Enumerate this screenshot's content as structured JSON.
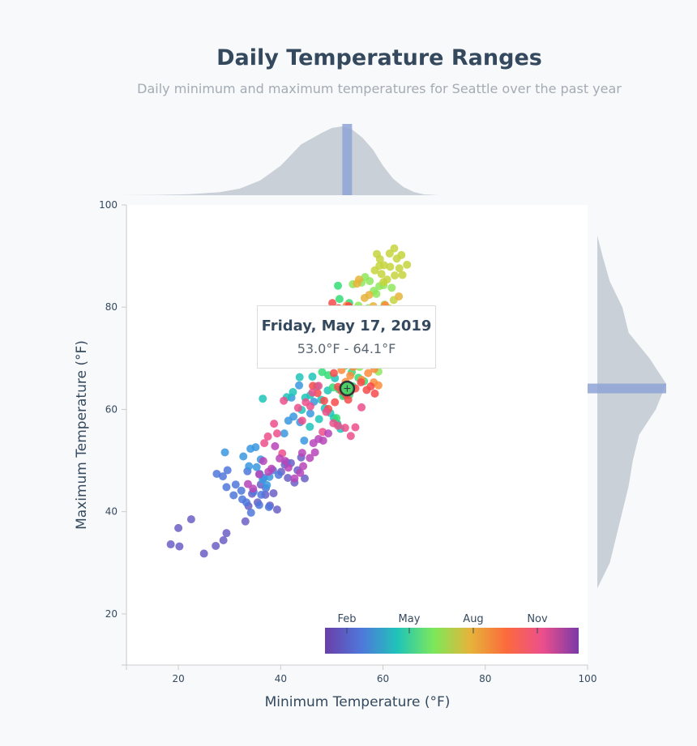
{
  "header": {
    "title": "Daily Temperature Ranges",
    "subtitle": "Daily minimum and maximum temperatures for Seattle over the past year"
  },
  "tooltip": {
    "date": "Friday, May 17, 2019",
    "range": "53.0°F - 64.1°F"
  },
  "colors": {
    "marginal_fill": "#c9d0d7",
    "highlight_band": "#8fa3d6",
    "axis": "#cccccc",
    "text": "#34495e"
  },
  "chart_data": {
    "type": "scatter",
    "title": "Daily Temperature Ranges",
    "subtitle": "Daily minimum and maximum temperatures for Seattle over the past year",
    "xlabel": "Minimum Temperature (°F)",
    "ylabel": "Maximum Temperature (°F)",
    "xlim": [
      10,
      100
    ],
    "ylim": [
      10,
      100
    ],
    "x_ticks": [
      20,
      40,
      60,
      80,
      100
    ],
    "y_ticks": [
      20,
      40,
      60,
      80,
      100
    ],
    "grid": false,
    "color_legend": {
      "placement": "bottom-right",
      "ticks": [
        "Feb",
        "May",
        "Aug",
        "Nov"
      ]
    },
    "highlight": {
      "min": 53.0,
      "max": 64.1
    },
    "marginal_top": [
      [
        8,
        0
      ],
      [
        16,
        0.2
      ],
      [
        22,
        0.6
      ],
      [
        28,
        1.8
      ],
      [
        32,
        4
      ],
      [
        36,
        9
      ],
      [
        40,
        18
      ],
      [
        44,
        31
      ],
      [
        48,
        38
      ],
      [
        50,
        41
      ],
      [
        52,
        42
      ],
      [
        54,
        40
      ],
      [
        56,
        35
      ],
      [
        58,
        28
      ],
      [
        60,
        18
      ],
      [
        62,
        10
      ],
      [
        64,
        5
      ],
      [
        66,
        2
      ],
      [
        68,
        0.5
      ],
      [
        71,
        0
      ]
    ],
    "marginal_right": [
      [
        25,
        0
      ],
      [
        30,
        6
      ],
      [
        35,
        9
      ],
      [
        40,
        12
      ],
      [
        45,
        15
      ],
      [
        50,
        17
      ],
      [
        55,
        20
      ],
      [
        60,
        28
      ],
      [
        65,
        33
      ],
      [
        70,
        25
      ],
      [
        75,
        15
      ],
      [
        80,
        12
      ],
      [
        85,
        6
      ],
      [
        90,
        2.5
      ],
      [
        94,
        0
      ]
    ],
    "series": [
      {
        "name": "Jan",
        "color": "#6c5fc7",
        "points": [
          [
            18.5,
            33.6
          ],
          [
            20.2,
            33.2
          ],
          [
            20,
            36.8
          ],
          [
            22.5,
            38.5
          ],
          [
            25,
            31.8
          ],
          [
            27.3,
            33.3
          ],
          [
            28.8,
            34.4
          ],
          [
            29.4,
            35.8
          ],
          [
            33.1,
            38.1
          ],
          [
            33.7,
            41.1
          ],
          [
            34.4,
            43.5
          ],
          [
            35.5,
            41.8
          ],
          [
            36.1,
            45.3
          ],
          [
            37,
            43.3
          ],
          [
            37.9,
            41.2
          ],
          [
            38.6,
            43.6
          ],
          [
            39.3,
            40.4
          ],
          [
            40.1,
            47.8
          ],
          [
            40.8,
            49.2
          ],
          [
            41.4,
            46.6
          ],
          [
            42,
            49.5
          ],
          [
            42.7,
            45.7
          ],
          [
            43.3,
            48.1
          ],
          [
            44,
            50.6
          ],
          [
            44.7,
            46.5
          ]
        ]
      },
      {
        "name": "Feb",
        "color": "#4f77db",
        "points": [
          [
            27.5,
            47.4
          ],
          [
            28.7,
            46.9
          ],
          [
            29.4,
            44.8
          ],
          [
            29.6,
            48.1
          ],
          [
            30.8,
            43.2
          ],
          [
            31.2,
            45.3
          ],
          [
            32.5,
            42.4
          ],
          [
            32.3,
            44.1
          ],
          [
            33.3,
            41.8
          ],
          [
            33.5,
            47.9
          ],
          [
            34.7,
            43.9
          ],
          [
            34.2,
            39.8
          ],
          [
            36.2,
            43.3
          ],
          [
            36.7,
            46.6
          ],
          [
            37.7,
            40.9
          ],
          [
            38.5,
            48.1
          ],
          [
            37.1,
            44.6
          ],
          [
            39.6,
            47.2
          ],
          [
            41.2,
            49.6
          ],
          [
            35.8,
            41.3
          ]
        ]
      },
      {
        "name": "Mar",
        "color": "#3a98e0",
        "points": [
          [
            29.1,
            51.6
          ],
          [
            32.7,
            50.8
          ],
          [
            33.8,
            48.9
          ],
          [
            35.3,
            48.7
          ],
          [
            35.9,
            47.4
          ],
          [
            36.5,
            46.3
          ],
          [
            37.3,
            45.2
          ],
          [
            37.8,
            46.8
          ],
          [
            34.1,
            52.3
          ],
          [
            35.1,
            52.6
          ],
          [
            36.1,
            50.2
          ],
          [
            40.7,
            55.3
          ],
          [
            41.5,
            57.8
          ],
          [
            42.5,
            58.6
          ],
          [
            43.8,
            57.5
          ],
          [
            44.6,
            53.9
          ],
          [
            45.8,
            59.2
          ],
          [
            42.1,
            62.3
          ],
          [
            43.6,
            64.7
          ],
          [
            46.5,
            61.5
          ]
        ]
      },
      {
        "name": "Apr",
        "color": "#1fc4b9",
        "points": [
          [
            36.5,
            62.1
          ],
          [
            41.2,
            62.4
          ],
          [
            42.4,
            63.4
          ],
          [
            43.7,
            66.3
          ],
          [
            44.8,
            62.3
          ],
          [
            45.8,
            62.8
          ],
          [
            46.2,
            66.4
          ],
          [
            47.1,
            64.5
          ],
          [
            47.9,
            61.9
          ],
          [
            48.6,
            60.2
          ],
          [
            49.7,
            59.3
          ],
          [
            50.4,
            58.3
          ],
          [
            51.1,
            57.2
          ],
          [
            51.7,
            56.2
          ],
          [
            44.1,
            59.9
          ],
          [
            45.7,
            56.6
          ],
          [
            47.5,
            58.1
          ],
          [
            49.2,
            63.7
          ],
          [
            52.4,
            62.8
          ],
          [
            50.6,
            66.1
          ]
        ]
      },
      {
        "name": "May",
        "color": "#33dd77",
        "points": [
          [
            47.2,
            69.1
          ],
          [
            48.1,
            67.3
          ],
          [
            49.3,
            66.7
          ],
          [
            50.2,
            64.3
          ],
          [
            51.4,
            63.9
          ],
          [
            52.2,
            62.6
          ],
          [
            53.4,
            62.8
          ],
          [
            54.1,
            64.5
          ],
          [
            55.2,
            66.2
          ],
          [
            56.3,
            65.5
          ],
          [
            53.9,
            67.3
          ],
          [
            52.7,
            68.6
          ],
          [
            51.2,
            84.2
          ],
          [
            51.5,
            81.6
          ],
          [
            52.2,
            77.9
          ],
          [
            53.4,
            80.8
          ],
          [
            54.2,
            76.8
          ],
          [
            53.8,
            70.2
          ],
          [
            55.8,
            71.7
          ],
          [
            50.9,
            58.3
          ]
        ]
      },
      {
        "name": "Jun",
        "color": "#8ee85a",
        "points": [
          [
            54.1,
            84.5
          ],
          [
            55.8,
            84.8
          ],
          [
            56.5,
            85.9
          ],
          [
            57.4,
            85.1
          ],
          [
            58.2,
            83.2
          ],
          [
            59.3,
            84.1
          ],
          [
            60.1,
            84.3
          ],
          [
            58.7,
            82.6
          ],
          [
            57.1,
            79.8
          ],
          [
            55.2,
            80.3
          ],
          [
            57.8,
            71.6
          ],
          [
            58.3,
            69.5
          ],
          [
            59.2,
            72.9
          ],
          [
            56.7,
            73.3
          ],
          [
            55.4,
            68.3
          ],
          [
            59.1,
            67.4
          ],
          [
            60.5,
            71.9
          ],
          [
            57.7,
            75.1
          ],
          [
            61.7,
            83.8
          ],
          [
            60.3,
            80.5
          ]
        ]
      },
      {
        "name": "Jul",
        "color": "#c6d43d",
        "points": [
          [
            58.8,
            90.4
          ],
          [
            59.4,
            89.4
          ],
          [
            60.2,
            88.2
          ],
          [
            61.3,
            90.5
          ],
          [
            62.2,
            91.5
          ],
          [
            63.6,
            90.2
          ],
          [
            62.7,
            89.5
          ],
          [
            61.4,
            87.9
          ],
          [
            59.7,
            86.5
          ],
          [
            60.8,
            85.4
          ],
          [
            63.2,
            87.6
          ],
          [
            64.7,
            88.3
          ],
          [
            62.1,
            81.4
          ],
          [
            61.2,
            79.8
          ],
          [
            62.3,
            86.2
          ],
          [
            58.4,
            87.2
          ],
          [
            60.1,
            84.9
          ],
          [
            59.3,
            88.1
          ],
          [
            63.8,
            86.3
          ],
          [
            61.6,
            78.3
          ]
        ]
      },
      {
        "name": "Aug",
        "color": "#e6b43a",
        "points": [
          [
            54.9,
            84.6
          ],
          [
            55.3,
            85.4
          ],
          [
            56.4,
            81.8
          ],
          [
            57.3,
            82.4
          ],
          [
            58.1,
            80.2
          ],
          [
            59.2,
            79.3
          ],
          [
            60.4,
            80.1
          ],
          [
            61.3,
            79.2
          ],
          [
            63.1,
            82.1
          ],
          [
            61.5,
            76.7
          ],
          [
            60.6,
            78.2
          ],
          [
            59.4,
            77.4
          ],
          [
            57.1,
            74.1
          ],
          [
            56.3,
            75.7
          ],
          [
            58.1,
            72.4
          ],
          [
            57.3,
            70.5
          ],
          [
            59.3,
            74.8
          ],
          [
            61.9,
            73.3
          ],
          [
            62.2,
            75.2
          ],
          [
            60.1,
            69.7
          ]
        ]
      },
      {
        "name": "Sep",
        "color": "#fb8c3c",
        "points": [
          [
            54.2,
            68.3
          ],
          [
            55.4,
            70.5
          ],
          [
            56.6,
            69.2
          ],
          [
            57.1,
            67.1
          ],
          [
            58.2,
            65.3
          ],
          [
            59.1,
            64.7
          ],
          [
            58.3,
            67.9
          ],
          [
            53.6,
            66.6
          ],
          [
            52.7,
            65.4
          ],
          [
            51.9,
            67.7
          ],
          [
            55.8,
            65.8
          ],
          [
            56.9,
            71.2
          ],
          [
            57.6,
            73.8
          ],
          [
            58.5,
            76.3
          ],
          [
            59.7,
            78.2
          ],
          [
            60.4,
            80.4
          ],
          [
            61.3,
            77.1
          ],
          [
            53.9,
            78.2
          ],
          [
            52.9,
            80.3
          ],
          [
            56.2,
            72.6
          ]
        ]
      },
      {
        "name": "Oct",
        "color": "#f74a4a",
        "points": [
          [
            50.1,
            80.8
          ],
          [
            51.3,
            79.8
          ],
          [
            52.2,
            79.2
          ],
          [
            53.3,
            80.2
          ],
          [
            50.4,
            67.1
          ],
          [
            51.2,
            64.4
          ],
          [
            52.8,
            62.8
          ],
          [
            53.7,
            63.6
          ],
          [
            54.6,
            64.1
          ],
          [
            55.7,
            65.3
          ],
          [
            56.8,
            63.8
          ],
          [
            57.6,
            64.5
          ],
          [
            58.4,
            63.1
          ],
          [
            46.3,
            64.6
          ],
          [
            47.2,
            63.2
          ],
          [
            48.5,
            61.7
          ],
          [
            49.3,
            60.1
          ],
          [
            50.6,
            61.4
          ],
          [
            51.9,
            63.6
          ],
          [
            53.2,
            61.9
          ]
        ]
      },
      {
        "name": "Nov",
        "color": "#ec4f8c",
        "points": [
          [
            44.9,
            61.4
          ],
          [
            45.8,
            60.6
          ],
          [
            46.2,
            63.3
          ],
          [
            47.4,
            64.6
          ],
          [
            48.9,
            59.5
          ],
          [
            50.3,
            57.3
          ],
          [
            51.2,
            56.8
          ],
          [
            52.6,
            56.4
          ],
          [
            53.7,
            54.8
          ],
          [
            54.6,
            56.5
          ],
          [
            55.8,
            60.4
          ],
          [
            44.2,
            57.8
          ],
          [
            43.4,
            60.3
          ],
          [
            40.6,
            61.7
          ],
          [
            39.3,
            55.3
          ],
          [
            38.7,
            57.2
          ],
          [
            36.8,
            53.4
          ],
          [
            37.5,
            54.7
          ],
          [
            40.3,
            51.4
          ],
          [
            48.2,
            55.6
          ]
        ]
      },
      {
        "name": "Dec",
        "color": "#b844b8",
        "points": [
          [
            33.6,
            45.4
          ],
          [
            34.6,
            44.5
          ],
          [
            35.8,
            47.3
          ],
          [
            36.6,
            49.9
          ],
          [
            37.6,
            47.8
          ],
          [
            38.2,
            48.4
          ],
          [
            38.9,
            52.8
          ],
          [
            39.8,
            50.4
          ],
          [
            40.9,
            49.9
          ],
          [
            41.5,
            48.6
          ],
          [
            42.7,
            46.5
          ],
          [
            43.8,
            47.6
          ],
          [
            44.4,
            48.9
          ],
          [
            45.7,
            50.5
          ],
          [
            46.7,
            51.6
          ],
          [
            47.4,
            54.2
          ],
          [
            48.3,
            53.9
          ],
          [
            49.3,
            55.3
          ],
          [
            46.4,
            53.4
          ],
          [
            44.2,
            51.5
          ]
        ]
      }
    ]
  }
}
